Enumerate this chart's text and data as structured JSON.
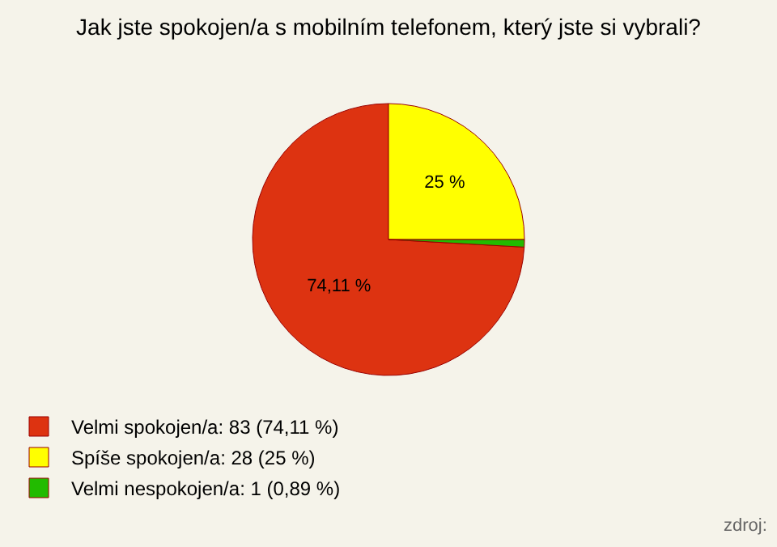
{
  "chart_data": {
    "type": "pie",
    "title": "Jak jste spokojen/a s mobilním telefonem, který jste si vybrali?",
    "categories": [
      "Velmi spokojen/a: 83 (74,11 %)",
      "Spíše spokojen/a: 28 (25 %)",
      "Velmi nespokojen/a: 1 (0,89 %)"
    ],
    "values": [
      74.11,
      25,
      0.89
    ],
    "value_labels": [
      "74,11 %",
      "25 %",
      null
    ],
    "colors": [
      "#dd3311",
      "#ffff00",
      "#22bb00"
    ],
    "legend": "bottom left",
    "annotations": [
      "zdroj:"
    ]
  }
}
